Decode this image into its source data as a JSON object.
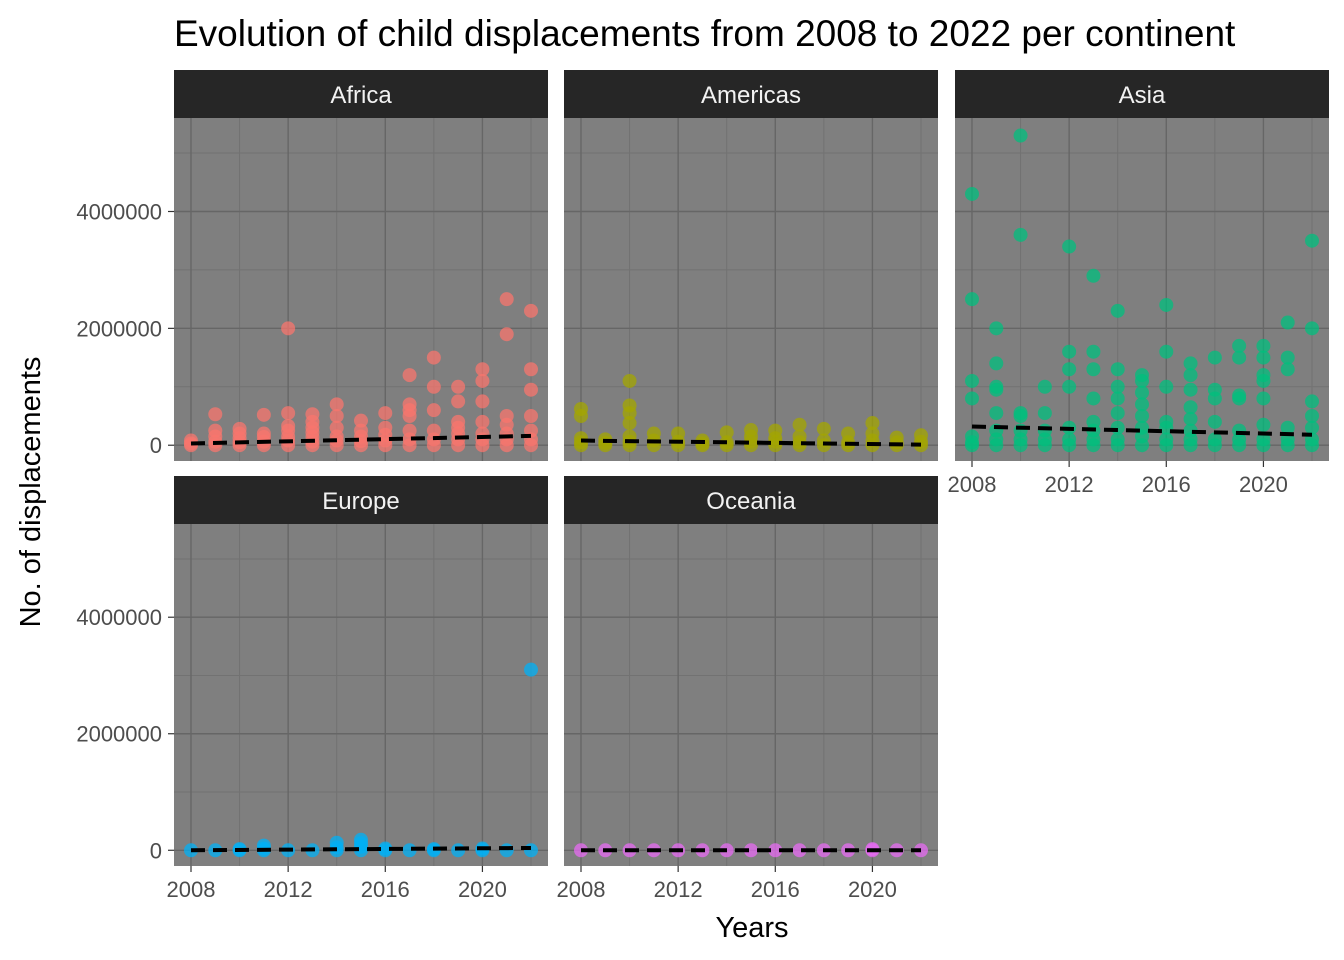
{
  "chart_data": {
    "type": "scatter",
    "title": "Evolution of child displacements from 2008 to 2022 per continent",
    "xlabel": "Years",
    "ylabel": "No. of displacements",
    "xlim": [
      2007.3,
      2022.7
    ],
    "ylim": [
      -270000,
      5600000
    ],
    "x_ticks": [
      2008,
      2012,
      2016,
      2020
    ],
    "y_ticks": [
      0,
      2000000,
      4000000
    ],
    "x_tick_labels": [
      "2008",
      "2012",
      "2016",
      "2020"
    ],
    "y_tick_labels": [
      "0",
      "2000000",
      "4000000"
    ],
    "grid": true,
    "legend": "none",
    "trend_line_style": "dashed, black",
    "panels": [
      {
        "name": "Africa",
        "color": "#F8766D",
        "trend": [
          {
            "x": 2008,
            "y": 30000
          },
          {
            "x": 2022,
            "y": 160000
          }
        ],
        "points": [
          [
            2008,
            0
          ],
          [
            2008,
            30000
          ],
          [
            2008,
            80000
          ],
          [
            2009,
            0
          ],
          [
            2009,
            60000
          ],
          [
            2009,
            150000
          ],
          [
            2009,
            250000
          ],
          [
            2009,
            530000
          ],
          [
            2010,
            0
          ],
          [
            2010,
            50000
          ],
          [
            2010,
            120000
          ],
          [
            2010,
            200000
          ],
          [
            2010,
            280000
          ],
          [
            2011,
            0
          ],
          [
            2011,
            60000
          ],
          [
            2011,
            140000
          ],
          [
            2011,
            200000
          ],
          [
            2011,
            520000
          ],
          [
            2012,
            0
          ],
          [
            2012,
            80000
          ],
          [
            2012,
            150000
          ],
          [
            2012,
            250000
          ],
          [
            2012,
            330000
          ],
          [
            2012,
            550000
          ],
          [
            2012,
            2000000
          ],
          [
            2013,
            0
          ],
          [
            2013,
            60000
          ],
          [
            2013,
            140000
          ],
          [
            2013,
            220000
          ],
          [
            2013,
            300000
          ],
          [
            2013,
            400000
          ],
          [
            2013,
            530000
          ],
          [
            2014,
            0
          ],
          [
            2014,
            80000
          ],
          [
            2014,
            150000
          ],
          [
            2014,
            300000
          ],
          [
            2014,
            500000
          ],
          [
            2014,
            700000
          ],
          [
            2015,
            0
          ],
          [
            2015,
            70000
          ],
          [
            2015,
            150000
          ],
          [
            2015,
            250000
          ],
          [
            2015,
            420000
          ],
          [
            2016,
            0
          ],
          [
            2016,
            80000
          ],
          [
            2016,
            180000
          ],
          [
            2016,
            300000
          ],
          [
            2016,
            550000
          ],
          [
            2017,
            0
          ],
          [
            2017,
            100000
          ],
          [
            2017,
            250000
          ],
          [
            2017,
            500000
          ],
          [
            2017,
            600000
          ],
          [
            2017,
            700000
          ],
          [
            2017,
            1200000
          ],
          [
            2018,
            0
          ],
          [
            2018,
            100000
          ],
          [
            2018,
            250000
          ],
          [
            2018,
            600000
          ],
          [
            2018,
            1000000
          ],
          [
            2018,
            1500000
          ],
          [
            2019,
            0
          ],
          [
            2019,
            100000
          ],
          [
            2019,
            200000
          ],
          [
            2019,
            300000
          ],
          [
            2019,
            400000
          ],
          [
            2019,
            750000
          ],
          [
            2019,
            1000000
          ],
          [
            2020,
            0
          ],
          [
            2020,
            100000
          ],
          [
            2020,
            200000
          ],
          [
            2020,
            400000
          ],
          [
            2020,
            750000
          ],
          [
            2020,
            1100000
          ],
          [
            2020,
            1300000
          ],
          [
            2021,
            0
          ],
          [
            2021,
            100000
          ],
          [
            2021,
            200000
          ],
          [
            2021,
            350000
          ],
          [
            2021,
            500000
          ],
          [
            2021,
            1900000
          ],
          [
            2021,
            2500000
          ],
          [
            2022,
            0
          ],
          [
            2022,
            100000
          ],
          [
            2022,
            250000
          ],
          [
            2022,
            500000
          ],
          [
            2022,
            950000
          ],
          [
            2022,
            1300000
          ],
          [
            2022,
            2300000
          ]
        ]
      },
      {
        "name": "Americas",
        "color": "#A3A500",
        "trend": [
          {
            "x": 2008,
            "y": 80000
          },
          {
            "x": 2022,
            "y": 10000
          }
        ],
        "points": [
          [
            2008,
            0
          ],
          [
            2008,
            50000
          ],
          [
            2008,
            120000
          ],
          [
            2008,
            500000
          ],
          [
            2008,
            620000
          ],
          [
            2009,
            0
          ],
          [
            2009,
            40000
          ],
          [
            2009,
            100000
          ],
          [
            2010,
            0
          ],
          [
            2010,
            60000
          ],
          [
            2010,
            150000
          ],
          [
            2010,
            380000
          ],
          [
            2010,
            550000
          ],
          [
            2010,
            680000
          ],
          [
            2010,
            1100000
          ],
          [
            2011,
            0
          ],
          [
            2011,
            80000
          ],
          [
            2011,
            200000
          ],
          [
            2012,
            0
          ],
          [
            2012,
            60000
          ],
          [
            2012,
            200000
          ],
          [
            2013,
            0
          ],
          [
            2013,
            30000
          ],
          [
            2013,
            80000
          ],
          [
            2014,
            0
          ],
          [
            2014,
            50000
          ],
          [
            2014,
            220000
          ],
          [
            2015,
            0
          ],
          [
            2015,
            60000
          ],
          [
            2015,
            150000
          ],
          [
            2015,
            260000
          ],
          [
            2016,
            0
          ],
          [
            2016,
            60000
          ],
          [
            2016,
            120000
          ],
          [
            2016,
            250000
          ],
          [
            2017,
            0
          ],
          [
            2017,
            50000
          ],
          [
            2017,
            150000
          ],
          [
            2017,
            350000
          ],
          [
            2018,
            0
          ],
          [
            2018,
            80000
          ],
          [
            2018,
            280000
          ],
          [
            2019,
            0
          ],
          [
            2019,
            50000
          ],
          [
            2019,
            200000
          ],
          [
            2020,
            0
          ],
          [
            2020,
            80000
          ],
          [
            2020,
            200000
          ],
          [
            2020,
            380000
          ],
          [
            2021,
            0
          ],
          [
            2021,
            50000
          ],
          [
            2021,
            130000
          ],
          [
            2022,
            0
          ],
          [
            2022,
            60000
          ],
          [
            2022,
            170000
          ]
        ]
      },
      {
        "name": "Asia",
        "color": "#00BF7D",
        "trend": [
          {
            "x": 2008,
            "y": 320000
          },
          {
            "x": 2022,
            "y": 180000
          }
        ],
        "points": [
          [
            2008,
            0
          ],
          [
            2008,
            50000
          ],
          [
            2008,
            150000
          ],
          [
            2008,
            800000
          ],
          [
            2008,
            1100000
          ],
          [
            2008,
            2500000
          ],
          [
            2008,
            4300000
          ],
          [
            2009,
            0
          ],
          [
            2009,
            100000
          ],
          [
            2009,
            250000
          ],
          [
            2009,
            550000
          ],
          [
            2009,
            950000
          ],
          [
            2009,
            1000000
          ],
          [
            2009,
            1400000
          ],
          [
            2009,
            2000000
          ],
          [
            2010,
            0
          ],
          [
            2010,
            100000
          ],
          [
            2010,
            250000
          ],
          [
            2010,
            500000
          ],
          [
            2010,
            550000
          ],
          [
            2010,
            3600000
          ],
          [
            2010,
            5300000
          ],
          [
            2011,
            0
          ],
          [
            2011,
            100000
          ],
          [
            2011,
            250000
          ],
          [
            2011,
            550000
          ],
          [
            2011,
            1000000
          ],
          [
            2012,
            0
          ],
          [
            2012,
            100000
          ],
          [
            2012,
            300000
          ],
          [
            2012,
            1000000
          ],
          [
            2012,
            1300000
          ],
          [
            2012,
            1600000
          ],
          [
            2012,
            3400000
          ],
          [
            2013,
            0
          ],
          [
            2013,
            100000
          ],
          [
            2013,
            250000
          ],
          [
            2013,
            400000
          ],
          [
            2013,
            800000
          ],
          [
            2013,
            1300000
          ],
          [
            2013,
            1600000
          ],
          [
            2013,
            2900000
          ],
          [
            2014,
            0
          ],
          [
            2014,
            100000
          ],
          [
            2014,
            300000
          ],
          [
            2014,
            550000
          ],
          [
            2014,
            800000
          ],
          [
            2014,
            1000000
          ],
          [
            2014,
            1300000
          ],
          [
            2014,
            2300000
          ],
          [
            2015,
            0
          ],
          [
            2015,
            150000
          ],
          [
            2015,
            300000
          ],
          [
            2015,
            500000
          ],
          [
            2015,
            700000
          ],
          [
            2015,
            900000
          ],
          [
            2015,
            1100000
          ],
          [
            2015,
            1200000
          ],
          [
            2016,
            0
          ],
          [
            2016,
            100000
          ],
          [
            2016,
            300000
          ],
          [
            2016,
            400000
          ],
          [
            2016,
            1000000
          ],
          [
            2016,
            1600000
          ],
          [
            2016,
            2400000
          ],
          [
            2017,
            0
          ],
          [
            2017,
            100000
          ],
          [
            2017,
            250000
          ],
          [
            2017,
            450000
          ],
          [
            2017,
            650000
          ],
          [
            2017,
            950000
          ],
          [
            2017,
            1200000
          ],
          [
            2017,
            1400000
          ],
          [
            2018,
            0
          ],
          [
            2018,
            100000
          ],
          [
            2018,
            400000
          ],
          [
            2018,
            800000
          ],
          [
            2018,
            950000
          ],
          [
            2018,
            1500000
          ],
          [
            2019,
            0
          ],
          [
            2019,
            100000
          ],
          [
            2019,
            250000
          ],
          [
            2019,
            800000
          ],
          [
            2019,
            850000
          ],
          [
            2019,
            1500000
          ],
          [
            2019,
            1700000
          ],
          [
            2020,
            0
          ],
          [
            2020,
            100000
          ],
          [
            2020,
            350000
          ],
          [
            2020,
            800000
          ],
          [
            2020,
            1100000
          ],
          [
            2020,
            1200000
          ],
          [
            2020,
            1500000
          ],
          [
            2020,
            1700000
          ],
          [
            2021,
            0
          ],
          [
            2021,
            100000
          ],
          [
            2021,
            300000
          ],
          [
            2021,
            1300000
          ],
          [
            2021,
            1500000
          ],
          [
            2021,
            2100000
          ],
          [
            2022,
            0
          ],
          [
            2022,
            100000
          ],
          [
            2022,
            300000
          ],
          [
            2022,
            500000
          ],
          [
            2022,
            750000
          ],
          [
            2022,
            2000000
          ],
          [
            2022,
            3500000
          ]
        ]
      },
      {
        "name": "Europe",
        "color": "#00B0F6",
        "trend": [
          {
            "x": 2008,
            "y": 0
          },
          {
            "x": 2022,
            "y": 40000
          }
        ],
        "points": [
          [
            2008,
            0
          ],
          [
            2009,
            0
          ],
          [
            2010,
            0
          ],
          [
            2010,
            20000
          ],
          [
            2011,
            0
          ],
          [
            2011,
            30000
          ],
          [
            2011,
            80000
          ],
          [
            2012,
            0
          ],
          [
            2013,
            0
          ],
          [
            2014,
            0
          ],
          [
            2014,
            50000
          ],
          [
            2014,
            130000
          ],
          [
            2015,
            0
          ],
          [
            2015,
            60000
          ],
          [
            2015,
            120000
          ],
          [
            2015,
            180000
          ],
          [
            2016,
            0
          ],
          [
            2016,
            30000
          ],
          [
            2017,
            0
          ],
          [
            2018,
            0
          ],
          [
            2018,
            20000
          ],
          [
            2019,
            0
          ],
          [
            2020,
            0
          ],
          [
            2020,
            30000
          ],
          [
            2021,
            0
          ],
          [
            2022,
            0
          ],
          [
            2022,
            3100000
          ]
        ]
      },
      {
        "name": "Oceania",
        "color": "#E76BF3",
        "trend": [
          {
            "x": 2008,
            "y": 0
          },
          {
            "x": 2022,
            "y": 0
          }
        ],
        "points": [
          [
            2008,
            0
          ],
          [
            2009,
            0
          ],
          [
            2010,
            0
          ],
          [
            2011,
            0
          ],
          [
            2012,
            0
          ],
          [
            2013,
            0
          ],
          [
            2014,
            0
          ],
          [
            2015,
            0
          ],
          [
            2016,
            0
          ],
          [
            2017,
            0
          ],
          [
            2018,
            0
          ],
          [
            2019,
            0
          ],
          [
            2020,
            0
          ],
          [
            2020,
            20000
          ],
          [
            2021,
            0
          ],
          [
            2022,
            0
          ]
        ]
      }
    ]
  }
}
